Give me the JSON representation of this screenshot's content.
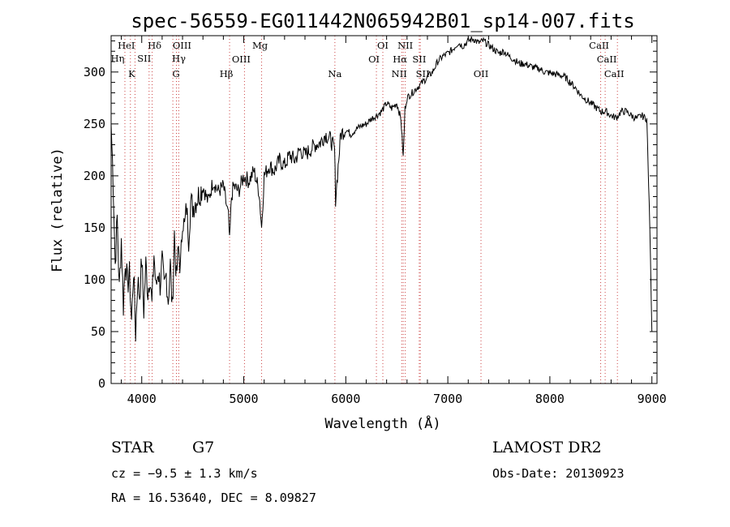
{
  "chart_data": {
    "type": "line",
    "title": "spec-56559-EG011442N065942B01_sp14-007.fits",
    "xlabel": "Wavelength (Å)",
    "ylabel": "Flux (relative)",
    "xlim": [
      3700,
      9050
    ],
    "ylim": [
      0,
      335
    ],
    "x_ticks": [
      4000,
      5000,
      6000,
      7000,
      8000,
      9000
    ],
    "y_ticks": [
      0,
      50,
      100,
      150,
      200,
      250,
      300
    ],
    "grid": false,
    "series": [
      {
        "x": [
          3700,
          3720,
          3740,
          3760,
          3780,
          3800,
          3820,
          3840,
          3860,
          3880,
          3900,
          3920,
          3940,
          3960,
          3980,
          4000,
          4020,
          4040,
          4060,
          4080,
          4100,
          4120,
          4140,
          4160,
          4180,
          4200,
          4220,
          4240,
          4260,
          4280,
          4300,
          4320,
          4340,
          4360,
          4380,
          4400,
          4420,
          4440,
          4460,
          4480,
          4500,
          4550,
          4600,
          4650,
          4700,
          4750,
          4800,
          4850,
          4861,
          4880,
          4900,
          4950,
          5000,
          5050,
          5100,
          5150,
          5175,
          5200,
          5250,
          5300,
          5350,
          5400,
          5450,
          5500,
          5550,
          5600,
          5650,
          5700,
          5750,
          5800,
          5850,
          5890,
          5900,
          5950,
          6000,
          6050,
          6100,
          6150,
          6200,
          6250,
          6300,
          6350,
          6400,
          6450,
          6500,
          6540,
          6563,
          6580,
          6600,
          6650,
          6700,
          6750,
          6800,
          6850,
          6900,
          6950,
          7000,
          7050,
          7100,
          7150,
          7200,
          7250,
          7300,
          7350,
          7400,
          7450,
          7500,
          7550,
          7600,
          7650,
          7700,
          7750,
          7800,
          7850,
          7900,
          7950,
          8000,
          8050,
          8100,
          8150,
          8200,
          8250,
          8300,
          8350,
          8400,
          8450,
          8500,
          8550,
          8600,
          8650,
          8700,
          8750,
          8800,
          8850,
          8900,
          8950,
          8980,
          9000
        ],
        "y": [
          250,
          195,
          115,
          160,
          90,
          140,
          75,
          120,
          95,
          105,
          60,
          110,
          48,
          100,
          85,
          120,
          70,
          115,
          88,
          105,
          75,
          125,
          90,
          110,
          95,
          118,
          90,
          105,
          80,
          115,
          70,
          145,
          100,
          130,
          110,
          160,
          150,
          170,
          140,
          175,
          170,
          180,
          190,
          175,
          195,
          185,
          190,
          160,
          135,
          180,
          190,
          185,
          200,
          195,
          205,
          185,
          150,
          200,
          210,
          205,
          215,
          210,
          220,
          215,
          225,
          220,
          225,
          230,
          232,
          240,
          235,
          225,
          178,
          240,
          245,
          240,
          245,
          248,
          250,
          255,
          258,
          262,
          270,
          265,
          270,
          255,
          218,
          265,
          275,
          280,
          285,
          290,
          295,
          300,
          310,
          315,
          318,
          322,
          328,
          325,
          330,
          332,
          328,
          330,
          326,
          322,
          318,
          320,
          315,
          312,
          308,
          308,
          306,
          304,
          303,
          300,
          299,
          298,
          297,
          295,
          290,
          285,
          278,
          274,
          270,
          266,
          262,
          262,
          258,
          256,
          262,
          262,
          258,
          255,
          258,
          255,
          150,
          50
        ]
      }
    ],
    "emission_lines": [
      {
        "label": "HeI",
        "x": 3889
      },
      {
        "label": "Hη",
        "x": 3835
      },
      {
        "label": "Hδ",
        "x": 4102
      },
      {
        "label": "SII",
        "x": 4072
      },
      {
        "label": "K",
        "x": 3934
      },
      {
        "label": "OIII",
        "x": 4363
      },
      {
        "label": "Hγ",
        "x": 4340
      },
      {
        "label": "G",
        "x": 4305
      },
      {
        "label": "Mg",
        "x": 5175
      },
      {
        "label": "OIII",
        "x": 5007
      },
      {
        "label": "Hβ",
        "x": 4861
      },
      {
        "label": "Na",
        "x": 5893
      },
      {
        "label": "OI",
        "x": 6363
      },
      {
        "label": "OI",
        "x": 6300
      },
      {
        "label": "NII",
        "x": 6583
      },
      {
        "label": "Hα",
        "x": 6563
      },
      {
        "label": "SII",
        "x": 6720
      },
      {
        "label": "NII",
        "x": 6548
      },
      {
        "label": "SII",
        "x": 6730
      },
      {
        "label": "OII",
        "x": 7325
      },
      {
        "label": "CaII",
        "x": 8498
      },
      {
        "label": "CaII",
        "x": 8542
      },
      {
        "label": "CaII",
        "x": 8662
      }
    ]
  },
  "info": {
    "class_label": "STAR",
    "subclass": "G7",
    "redshift": "cz = −9.5 ± 1.3 km/s",
    "coords": "RA =  16.53640, DEC =   8.09827",
    "survey": "LAMOST DR2",
    "obs_date": "Obs-Date: 20130923"
  }
}
